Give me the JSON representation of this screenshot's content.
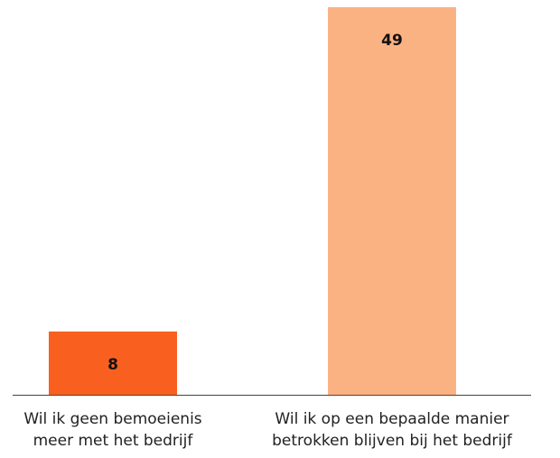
{
  "chart_data": {
    "type": "bar",
    "categories": [
      "Wil ik geen bemoeienis meer met het bedrijf",
      "Wil ik op een bepaalde manier betrokken blijven bij het bedrijf"
    ],
    "values": [
      8,
      49
    ],
    "colors": [
      "#f96020",
      "#fbb283"
    ]
  }
}
